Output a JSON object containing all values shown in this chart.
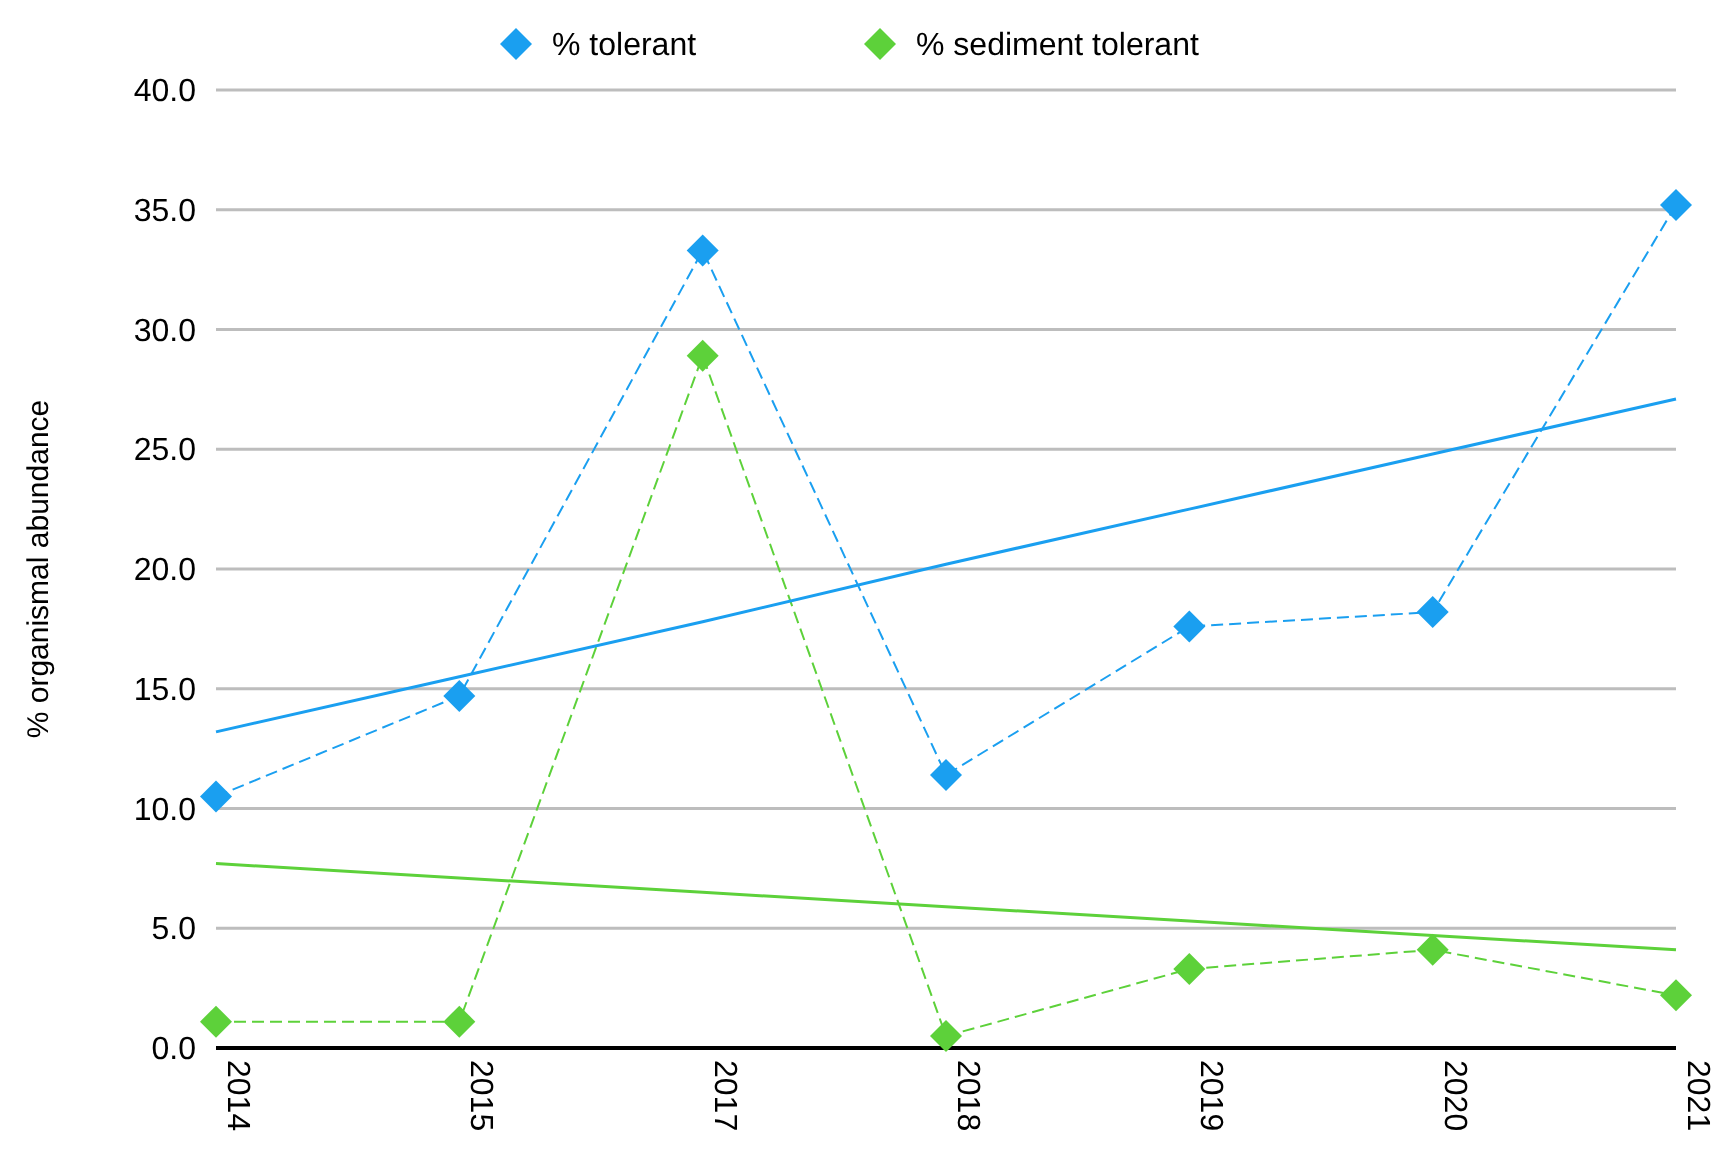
{
  "chart_data": {
    "type": "line",
    "ylabel": "% organismal abundance",
    "categories": [
      "2014",
      "2015",
      "2017",
      "2018",
      "2019",
      "2020",
      "2021"
    ],
    "series": [
      {
        "name": "% tolerant",
        "color": "#1a9ff0",
        "values": [
          10.5,
          14.7,
          33.3,
          11.4,
          17.6,
          18.2,
          35.2
        ],
        "marker": "diamond",
        "line_style": "dashed"
      },
      {
        "name": "% sediment tolerant",
        "color": "#5dd13a",
        "values": [
          1.1,
          1.1,
          28.9,
          0.5,
          3.3,
          4.1,
          2.2
        ],
        "marker": "diamond",
        "line_style": "dashed"
      },
      {
        "type": "line",
        "color": "#1a9ff0",
        "values": [
          13.2,
          15.5,
          17.8,
          20.2,
          22.5,
          24.8,
          27.1
        ],
        "marker": "none",
        "line_style": "solid"
      },
      {
        "type": "line",
        "color": "#5dd13a",
        "values": [
          7.7,
          7.1,
          6.5,
          5.9,
          5.3,
          4.7,
          4.1
        ],
        "marker": "none",
        "line_style": "solid"
      }
    ],
    "ylim": [
      0,
      40
    ],
    "yticks": [
      {
        "value": 0,
        "label": "0.0"
      },
      {
        "value": 5,
        "label": "5.0"
      },
      {
        "value": 10,
        "label": "10.0"
      },
      {
        "value": 15,
        "label": "15.0"
      },
      {
        "value": 20,
        "label": "20.0"
      },
      {
        "value": 25,
        "label": "25.0"
      },
      {
        "value": 30,
        "label": "30.0"
      },
      {
        "value": 35,
        "label": "35.0"
      },
      {
        "value": 40,
        "label": "40.0"
      }
    ],
    "grid": "y",
    "legend": "top"
  }
}
